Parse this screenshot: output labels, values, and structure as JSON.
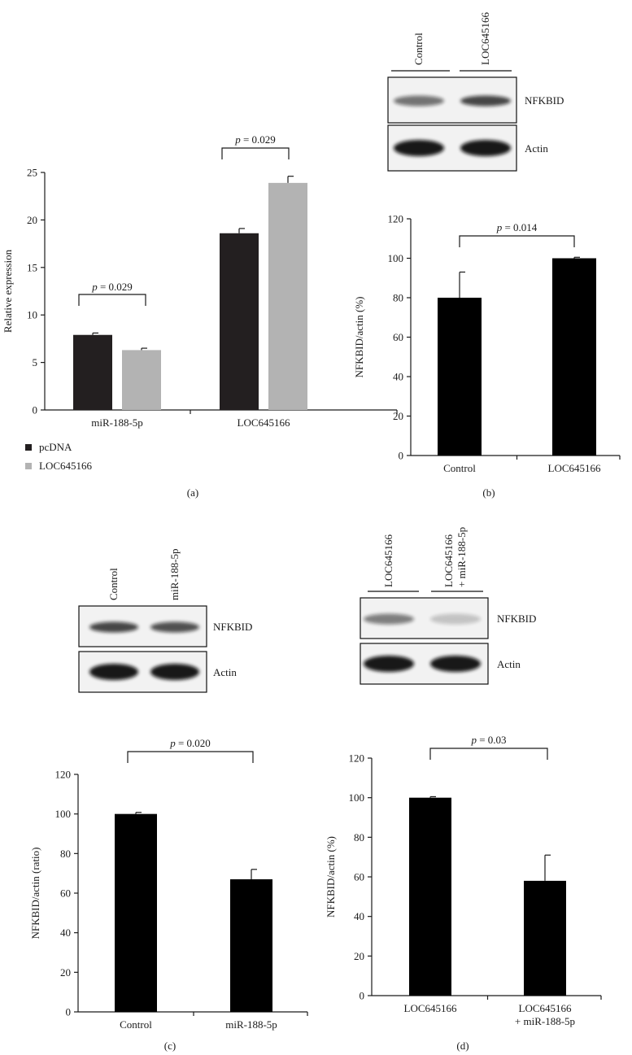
{
  "panel_labels": [
    "(a)",
    "(b)",
    "(c)",
    "(d)"
  ],
  "colors": {
    "dark_bar": "#231f20",
    "light_bar": "#b3b3b3",
    "black_bar": "#000000",
    "axis": "#1a1a1a"
  },
  "chart_data": [
    {
      "panel": "(a)",
      "type": "bar",
      "ylabel": "Relative expression",
      "ylim": [
        0,
        25
      ],
      "yticks": [
        0,
        5,
        10,
        15,
        20,
        25
      ],
      "categories": [
        "miR-188-5p",
        "LOC645166"
      ],
      "series": [
        {
          "name": "pcDNA",
          "color": "#231f20",
          "values": [
            7.9,
            18.6
          ],
          "errors": [
            0.2,
            0.5
          ]
        },
        {
          "name": "LOC645166",
          "color": "#b3b3b3",
          "values": [
            6.3,
            23.9
          ],
          "errors": [
            0.2,
            0.7
          ]
        }
      ],
      "annotations": [
        {
          "italic": "p",
          "text": " = 0.029",
          "category": 0
        },
        {
          "italic": "p",
          "text": " = 0.029",
          "category": 1
        }
      ],
      "legend": "bottom-left"
    },
    {
      "panel": "(b)",
      "type": "bar",
      "ylabel": "NFKBID/actin (%)",
      "ylim": [
        0,
        120
      ],
      "yticks": [
        0,
        20,
        40,
        60,
        80,
        100,
        120
      ],
      "categories": [
        "Control",
        "LOC645166"
      ],
      "values": [
        80,
        100
      ],
      "errors": [
        13,
        0.5
      ],
      "annotation": {
        "italic": "p",
        "text": " = 0.014"
      }
    },
    {
      "panel": "(c)",
      "type": "bar",
      "ylabel": "NFKBID/actin (ratio)",
      "ylim": [
        0,
        120
      ],
      "yticks": [
        0,
        20,
        40,
        60,
        80,
        100,
        120
      ],
      "categories": [
        "Control",
        "miR-188-5p"
      ],
      "values": [
        100,
        67
      ],
      "errors": [
        0.8,
        5
      ],
      "annotation": {
        "italic": "p",
        "text": " = 0.020"
      }
    },
    {
      "panel": "(d)",
      "type": "bar",
      "ylabel": "NFKBID/actin (%)",
      "ylim": [
        0,
        120
      ],
      "yticks": [
        0,
        20,
        40,
        60,
        80,
        100,
        120
      ],
      "categories": [
        [
          "LOC645166"
        ],
        [
          "LOC645166",
          "+ miR-188-5p"
        ]
      ],
      "values": [
        100,
        58
      ],
      "errors": [
        0.5,
        13
      ],
      "annotation": {
        "italic": "p",
        "text": " = 0.03"
      }
    }
  ],
  "blots": [
    {
      "panel": "(b)",
      "lanes": [
        [
          "Control"
        ],
        [
          "LOC645166"
        ]
      ],
      "bands": [
        "NFKBID",
        "Actin"
      ],
      "intensity": [
        [
          0.55,
          0.75
        ],
        [
          0.95,
          0.95
        ]
      ]
    },
    {
      "panel": "(c)",
      "lanes": [
        [
          "Control"
        ],
        [
          "miR-188-5p"
        ]
      ],
      "bands": [
        "NFKBID",
        "Actin"
      ],
      "intensity": [
        [
          0.75,
          0.7
        ],
        [
          0.95,
          0.95
        ]
      ]
    },
    {
      "panel": "(d)",
      "lanes": [
        [
          "LOC645166"
        ],
        [
          "LOC645166",
          "+ miR-188-5p"
        ]
      ],
      "bands": [
        "NFKBID",
        "Actin"
      ],
      "intensity": [
        [
          0.5,
          0.2
        ],
        [
          0.95,
          0.95
        ]
      ]
    }
  ]
}
